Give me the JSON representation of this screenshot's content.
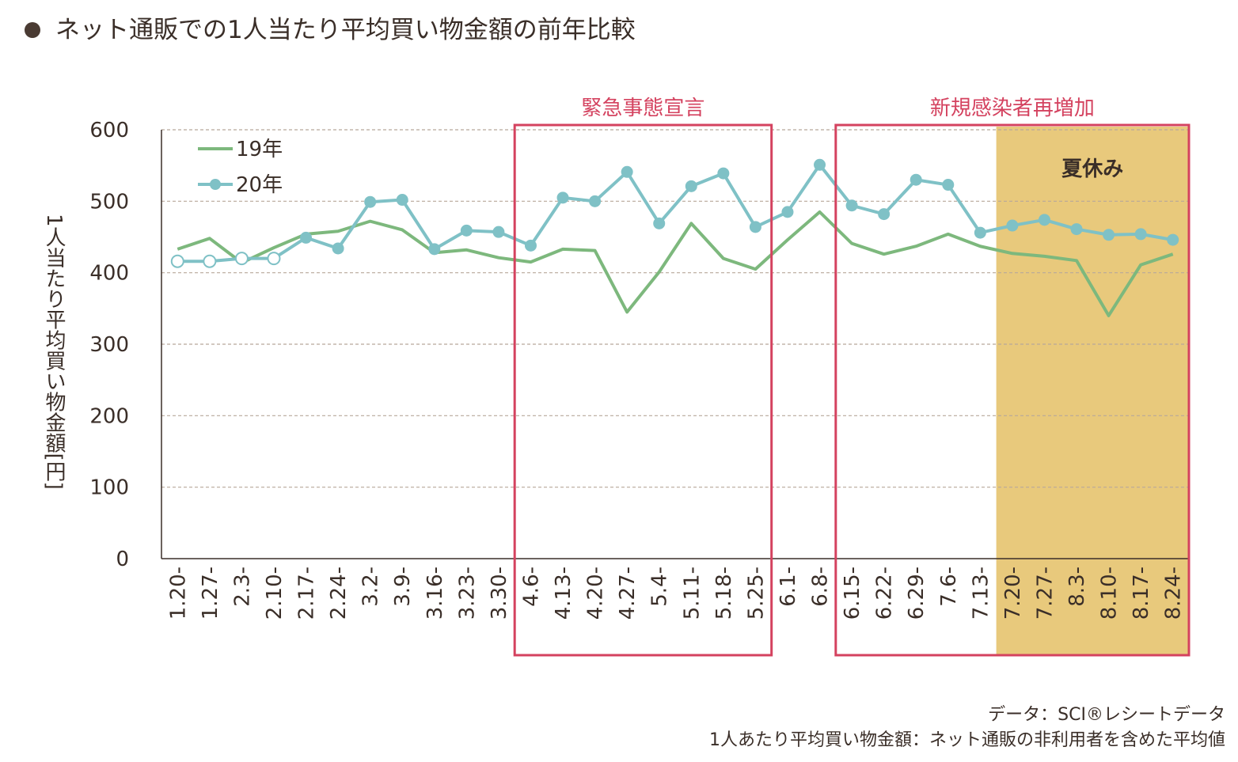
{
  "title": "ネット通販での1人当たり平均買い物金額の前年比較",
  "colors": {
    "series_19": "#7db87d",
    "series_20": "#7fc1c6",
    "band_border": "#d4425f",
    "summer_fill": "#e8c97c",
    "grid": "#b8a89a",
    "text": "#3a2e28"
  },
  "chart_data": {
    "type": "line",
    "ylabel": "1人当たり平均買い物金額[円]",
    "ylim": [
      0,
      600
    ],
    "yticks": [
      "0",
      "100",
      "200",
      "300",
      "400",
      "500",
      "600"
    ],
    "categories": [
      "1.20-",
      "1.27-",
      "2.3-",
      "2.10-",
      "2.17-",
      "2.24-",
      "3.2-",
      "3.9-",
      "3.16-",
      "3.23-",
      "3.30-",
      "4.6-",
      "4.13-",
      "4.20-",
      "4.27-",
      "5.4-",
      "5.11-",
      "5.18-",
      "5.25-",
      "6.1-",
      "6.8-",
      "6.15-",
      "6.22-",
      "6.29-",
      "7.6-",
      "7.13-",
      "7.20-",
      "7.27-",
      "8.3-",
      "8.10-",
      "8.17-",
      "8.24-"
    ],
    "series": [
      {
        "name": "19年",
        "values": [
          433,
          448,
          414,
          435,
          454,
          458,
          472,
          460,
          428,
          432,
          421,
          415,
          433,
          431,
          345,
          401,
          469,
          420,
          405,
          446,
          485,
          441,
          426,
          437,
          454,
          437,
          427,
          423,
          417,
          340,
          411,
          426
        ]
      },
      {
        "name": "20年",
        "values": [
          416,
          416,
          420,
          420,
          449,
          434,
          499,
          502,
          433,
          459,
          457,
          438,
          505,
          500,
          541,
          469,
          521,
          539,
          464,
          485,
          551,
          494,
          482,
          530,
          523,
          456,
          466,
          474,
          461,
          453,
          454,
          446
        ],
        "hollow_points": [
          0,
          1,
          2,
          3
        ]
      }
    ],
    "legend": "top-left",
    "grid": "horizontal-dashed",
    "annotations": [
      {
        "label": "緊急事態宣言",
        "from": "4.6-",
        "to": "5.25-"
      },
      {
        "label": "新規感染者再増加",
        "from": "6.15-",
        "to": "8.24-"
      },
      {
        "label": "夏休み",
        "from": "7.20-",
        "to": "8.24-"
      }
    ]
  },
  "notes": [
    "データ：SCI®レシートデータ",
    "1人あたり平均買い物金額：ネット通販の非利用者を含めた平均値"
  ]
}
